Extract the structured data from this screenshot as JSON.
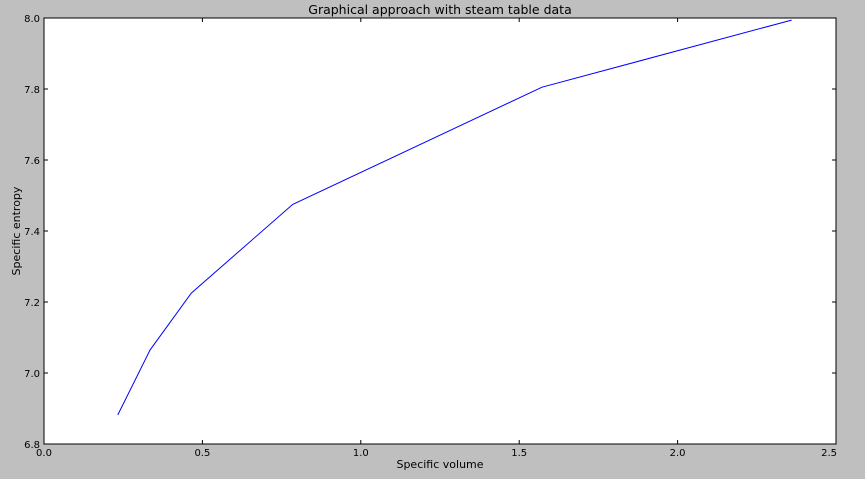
{
  "chart_data": {
    "type": "line",
    "title": "Graphical approach with steam table data",
    "xlabel": "Specific volume",
    "ylabel": "Specific entropy",
    "xlim": [
      0.0,
      2.5
    ],
    "ylim": [
      6.8,
      8.0
    ],
    "x_ticks": [
      "0.0",
      "0.5",
      "1.0",
      "1.5",
      "2.0",
      "2.5"
    ],
    "x_tick_values": [
      0.0,
      0.5,
      1.0,
      1.5,
      2.0,
      2.5
    ],
    "y_ticks": [
      "6.8",
      "7.0",
      "7.2",
      "7.4",
      "7.6",
      "7.8",
      "8.0"
    ],
    "y_tick_values": [
      6.8,
      7.0,
      7.2,
      7.4,
      7.6,
      7.8,
      8.0
    ],
    "grid": false,
    "legend": "none",
    "series": [
      {
        "color": "#0000ff",
        "x": [
          0.233,
          0.335,
          0.465,
          0.785,
          1.572,
          2.36
        ],
        "y": [
          6.882,
          7.065,
          7.225,
          7.475,
          7.805,
          7.994
        ]
      }
    ]
  }
}
